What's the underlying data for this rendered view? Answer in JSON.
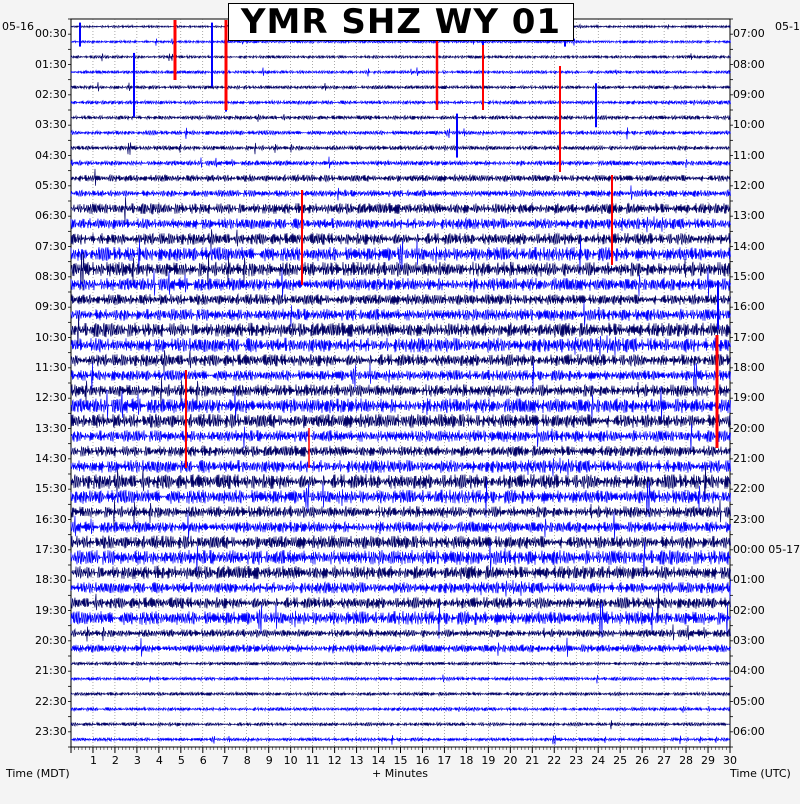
{
  "title": "YMR SHZ WY 01",
  "start_date_left": "05-16",
  "start_date_right": "05-1",
  "left_axis_label": "Time (MDT)",
  "right_axis_label": "Time (UTC)",
  "x_axis_label": "+ Minutes",
  "minute_ticks": [
    "1",
    "2",
    "3",
    "4",
    "5",
    "6",
    "7",
    "8",
    "9",
    "10",
    "11",
    "12",
    "13",
    "14",
    "15",
    "16",
    "17",
    "18",
    "19",
    "20",
    "21",
    "22",
    "23",
    "24",
    "25",
    "26",
    "27",
    "28",
    "29",
    "30"
  ],
  "left_times": [
    "00:30",
    "01:30",
    "02:30",
    "03:30",
    "04:30",
    "05:30",
    "06:30",
    "07:30",
    "08:30",
    "09:30",
    "10:30",
    "11:30",
    "12:30",
    "13:30",
    "14:30",
    "15:30",
    "16:30",
    "17:30",
    "18:30",
    "19:30",
    "20:30",
    "21:30",
    "22:30",
    "23:30"
  ],
  "right_times": [
    "07:00",
    "08:00",
    "09:00",
    "10:00",
    "11:00",
    "12:00",
    "13:00",
    "14:00",
    "15:00",
    "16:00",
    "17:00",
    "18:00",
    "19:00",
    "20:00",
    "21:00",
    "22:00",
    "23:00",
    "00:00 05-17",
    "01:00",
    "02:00",
    "03:00",
    "04:00",
    "05:00",
    "06:00"
  ],
  "colors": {
    "trace_dark": "#000066",
    "trace_blue": "#0000ff",
    "clip": "#ff0000",
    "grid": "#000000",
    "background": "#ffffff"
  }
}
